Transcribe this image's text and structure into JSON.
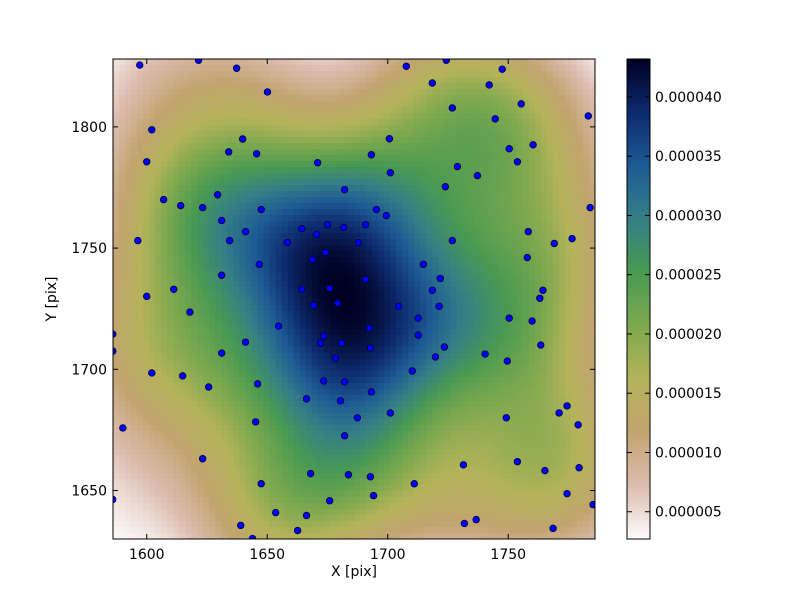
{
  "chart_data": {
    "type": "scatter",
    "xlabel": "X [pix]",
    "ylabel": "Y [pix]",
    "color": "#0000ff",
    "xlim": [
      1586,
      1786
    ],
    "ylim": [
      1630,
      1828
    ],
    "xticks": [
      1600,
      1650,
      1700,
      1750
    ],
    "yticks": [
      1650,
      1700,
      1750,
      1800
    ],
    "x": [
      1597.1,
      1621.5,
      1637.3,
      1650.1,
      1602.1,
      1600,
      1639.8,
      1634,
      1645.6,
      1707.7,
      1718.5,
      1724.3,
      1747.5,
      1742.1,
      1726.8,
      1755.4,
      1744.6,
      1783.2,
      1700.7,
      1693.2,
      1670.9,
      1750.4,
      1760.3,
      1753.8,
      1728.9,
      1737.2,
      1701.1,
      1723.9,
      1682.1,
      1607,
      1614.1,
      1623.2,
      1629.4,
      1647.5,
      1631.1,
      1695.3,
      1699.4,
      1641,
      1634.4,
      1596.3,
      1675,
      1681.7,
      1690.8,
      1664.3,
      1670.5,
      1658.3,
      1687.9,
      1726.8,
      1758.3,
      1776.5,
      1769.1,
      1784,
      1757.9,
      1674.2,
      1668.8,
      1646.7,
      1714.8,
      1631.1,
      1721.8,
      1690.8,
      1611.2,
      1664.3,
      1675.9,
      1718.5,
      1764.4,
      1600,
      1763.1,
      1679.2,
      1669.2,
      1704.5,
      1721.3,
      1617.9,
      1750.4,
      1759.9,
      1712.6,
      1654.7,
      1692.4,
      1673.4,
      1712.6,
      1680.8,
      1672.1,
      1692.8,
      1723.5,
      1763.5,
      1641,
      1585.9,
      1585.9,
      1631.1,
      1740.4,
      1719.8,
      1678.3,
      1749.6,
      1602.1,
      1710.2,
      1614.9,
      1673.4,
      1682.1,
      1646,
      1625.7,
      1693.2,
      1666.3,
      1680.4,
      1774.4,
      1771.1,
      1701.1,
      1687.4,
      1645.2,
      1749.2,
      1779,
      1590.1,
      1682.1,
      1623.2,
      1753.8,
      1731.4,
      1765.2,
      1779.4,
      1668,
      1683.7,
      1692.8,
      1647.5,
      1711,
      1694.1,
      1774.4,
      1585.9,
      1675.9,
      1653.5,
      1666.3,
      1785.2,
      1639,
      1662.6,
      1731.8,
      1736.7,
      1768.6,
      1643.9
    ],
    "values": [
      1825.5,
      1827.5,
      1824.2,
      1814.4,
      1798.8,
      1785.6,
      1795,
      1789.7,
      1788.9,
      1825,
      1818.1,
      1827.5,
      1823.8,
      1817.3,
      1807.8,
      1809.5,
      1803.3,
      1804.5,
      1795.1,
      1788.5,
      1785.2,
      1791,
      1792.6,
      1785.6,
      1783.6,
      1779.9,
      1781.1,
      1775.3,
      1774.1,
      1770,
      1767.5,
      1766.7,
      1772,
      1765.9,
      1761.4,
      1765.9,
      1763.4,
      1756.8,
      1753.1,
      1753.1,
      1759.7,
      1758.5,
      1759.7,
      1758,
      1755.6,
      1752.3,
      1752.3,
      1753.1,
      1756.8,
      1753.9,
      1751.9,
      1766.7,
      1746.1,
      1748.2,
      1745.3,
      1743.3,
      1743.3,
      1738.8,
      1737.5,
      1737.1,
      1733,
      1733,
      1733.4,
      1732.6,
      1732.6,
      1730.1,
      1729.3,
      1727.3,
      1726.4,
      1726,
      1726,
      1723.6,
      1721.1,
      1719.9,
      1721.1,
      1717.8,
      1717,
      1713.7,
      1714.1,
      1710.8,
      1710.8,
      1708.8,
      1709.2,
      1710,
      1711.2,
      1714.5,
      1707.5,
      1706.7,
      1706.3,
      1705.1,
      1704.6,
      1703.4,
      1698.5,
      1699.3,
      1697.3,
      1695.2,
      1694.8,
      1694,
      1692.7,
      1690.7,
      1687.8,
      1687,
      1684.9,
      1682,
      1682,
      1680,
      1678.3,
      1680,
      1677.1,
      1675.8,
      1672.6,
      1663.1,
      1661.9,
      1660.6,
      1658.2,
      1659.4,
      1657,
      1656.5,
      1655.7,
      1652.8,
      1652.8,
      1647.9,
      1648.7,
      1646.3,
      1645.8,
      1640.9,
      1639.7,
      1644.2,
      1635.6,
      1633.5,
      1636.4,
      1638,
      1634.4,
      1630.2
    ],
    "colorbar": {
      "lim": [
        2.7e-06,
        4.32e-05
      ],
      "ticks": [
        {
          "value": 5e-06,
          "label": "0.000005"
        },
        {
          "value": 1e-05,
          "label": "0.000010"
        },
        {
          "value": 1.5e-05,
          "label": "0.000015"
        },
        {
          "value": 2e-05,
          "label": "0.000020"
        },
        {
          "value": 2.5e-05,
          "label": "0.000025"
        },
        {
          "value": 3e-05,
          "label": "0.000030"
        },
        {
          "value": 3.5e-05,
          "label": "0.000035"
        },
        {
          "value": 4e-05,
          "label": "0.000040"
        }
      ],
      "colormap": [
        "#fdfbfb",
        "#dcbcaf",
        "#c2a470",
        "#b4b35a",
        "#7ca84e",
        "#4a9a52",
        "#357f86",
        "#1e5a94",
        "#0d2a6e",
        "#000022"
      ]
    }
  }
}
